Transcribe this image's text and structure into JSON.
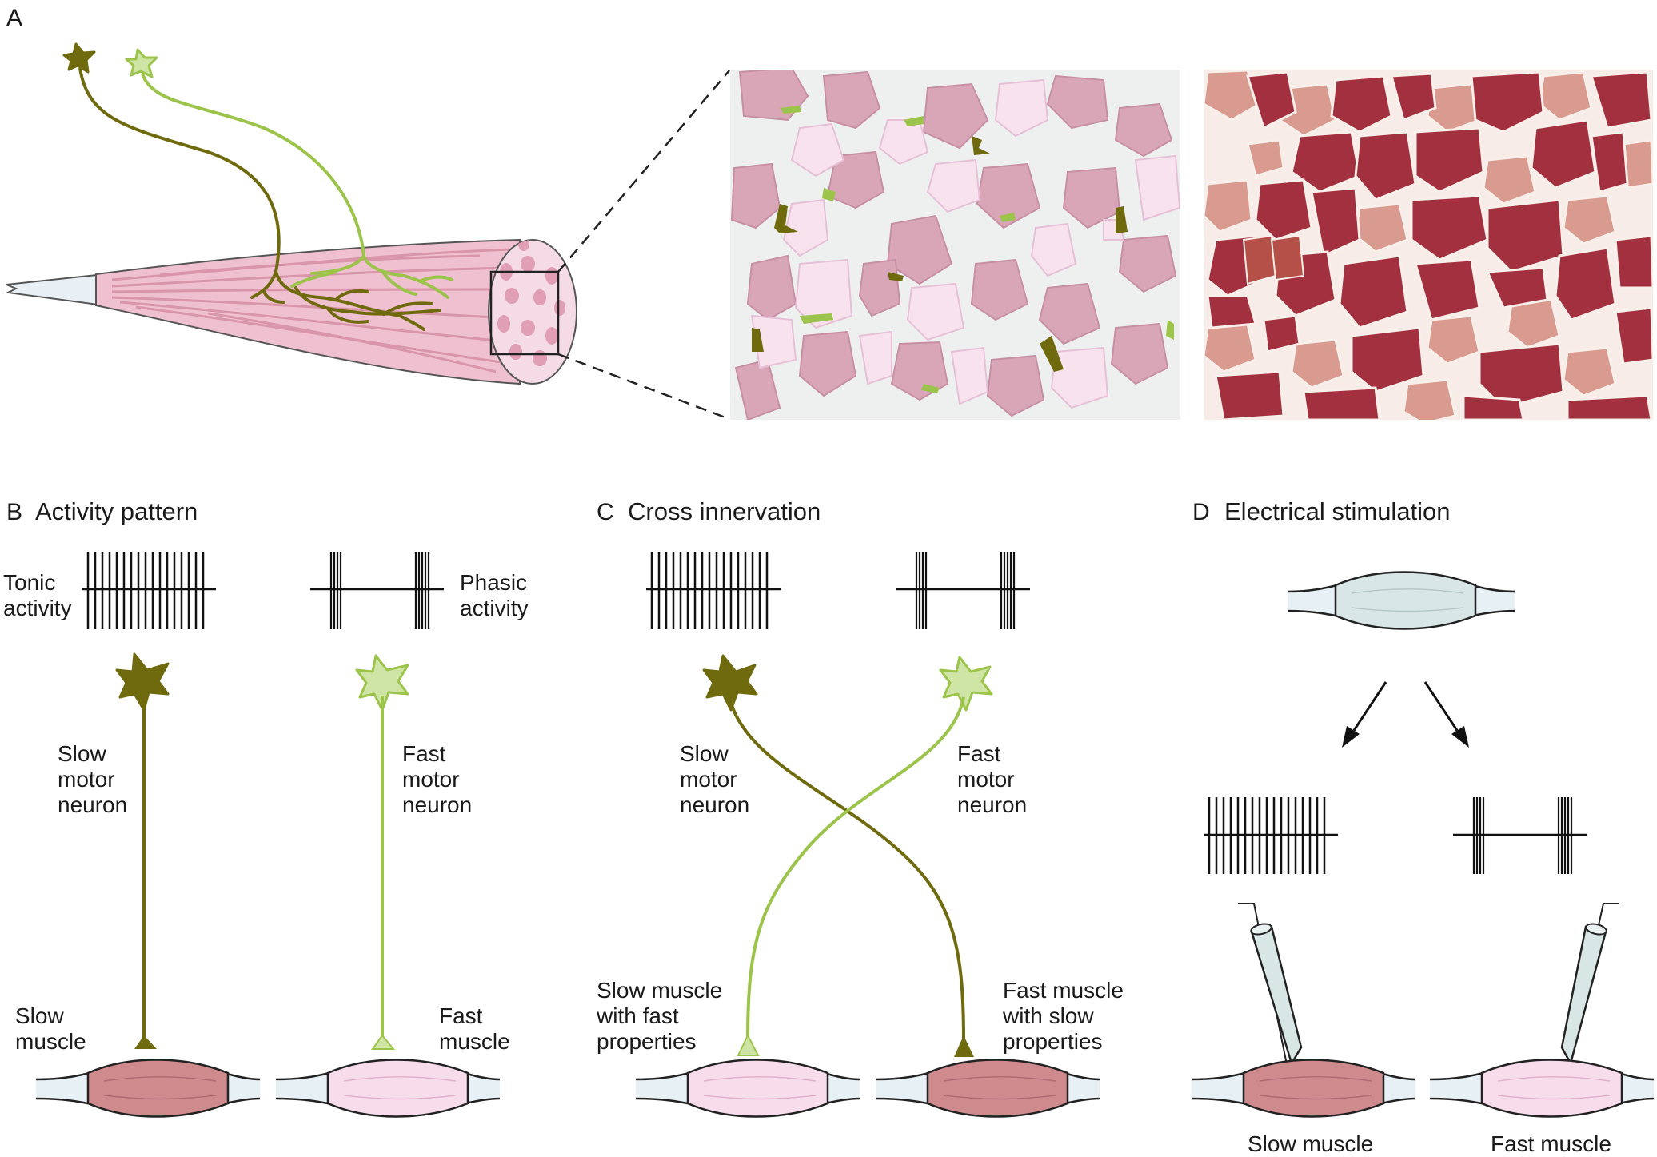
{
  "panel_a": {
    "letter": "A"
  },
  "panel_b": {
    "letter": "B",
    "title": "Activity pattern",
    "tonic_label": [
      "Tonic",
      "activity"
    ],
    "phasic_label": [
      "Phasic",
      "activity"
    ],
    "slow_neuron_label": [
      "Slow",
      "motor",
      "neuron"
    ],
    "fast_neuron_label": [
      "Fast",
      "motor",
      "neuron"
    ],
    "slow_muscle_label": [
      "Slow",
      "muscle"
    ],
    "fast_muscle_label": [
      "Fast",
      "muscle"
    ]
  },
  "panel_c": {
    "letter": "C",
    "title": "Cross innervation",
    "slow_neuron_label": [
      "Slow",
      "motor",
      "neuron"
    ],
    "fast_neuron_label": [
      "Fast",
      "motor",
      "neuron"
    ],
    "left_muscle_label": [
      "Slow muscle",
      "with fast",
      "properties"
    ],
    "right_muscle_label": [
      "Fast muscle",
      "with slow",
      "properties"
    ]
  },
  "panel_d": {
    "letter": "D",
    "title": "Electrical stimulation",
    "slow_muscle_label": "Slow muscle",
    "fast_muscle_label": "Fast muscle"
  },
  "colors": {
    "slow_neuron": "#6f6a0e",
    "fast_neuron": "#9cc44a",
    "slow_muscle": "#cf8a8e",
    "fast_muscle": "#f7dcec",
    "tendon": "#e7f0f5",
    "neutral_muscle": "#d9e6e6"
  }
}
